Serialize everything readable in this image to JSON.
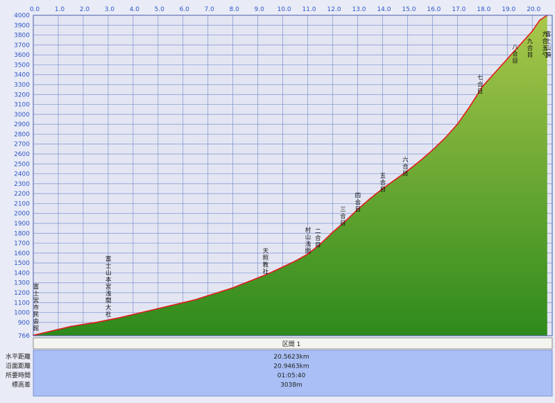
{
  "chart_data": {
    "type": "area",
    "title": "",
    "xlabel": "",
    "ylabel": "",
    "xlim": [
      0.0,
      20.8
    ],
    "ylim": [
      766,
      4000
    ],
    "grid": true,
    "x_ticks": [
      "0.0",
      "1.0",
      "2.0",
      "3.0",
      "4.0",
      "5.0",
      "6.0",
      "7.0",
      "8.0",
      "9.0",
      "10.0",
      "11.0",
      "12.0",
      "13.0",
      "14.0",
      "15.0",
      "16.0",
      "17.0",
      "18.0",
      "19.0",
      "20.0"
    ],
    "y_ticks": [
      "766",
      "900",
      "1000",
      "1100",
      "1200",
      "1300",
      "1400",
      "1500",
      "1600",
      "1700",
      "1800",
      "1900",
      "2000",
      "2100",
      "2200",
      "2300",
      "2400",
      "2500",
      "2600",
      "2700",
      "2800",
      "2900",
      "3000",
      "3100",
      "3200",
      "3300",
      "3400",
      "3500",
      "3600",
      "3700",
      "3800",
      "3900",
      "4000"
    ],
    "series": [
      {
        "x": [
          0.0,
          0.5,
          1.0,
          1.5,
          2.0,
          2.5,
          3.0,
          3.5,
          4.0,
          4.5,
          5.0,
          5.5,
          6.0,
          6.5,
          7.0,
          7.5,
          8.0,
          8.5,
          9.0,
          9.5,
          10.0,
          10.5,
          11.0,
          11.5,
          12.0,
          12.5,
          13.0,
          13.5,
          14.0,
          14.5,
          15.0,
          15.5,
          16.0,
          16.5,
          17.0,
          17.5,
          18.0,
          18.5,
          19.0,
          19.5,
          20.0,
          20.3,
          20.6
        ],
        "values": [
          770,
          800,
          830,
          860,
          880,
          900,
          925,
          950,
          980,
          1010,
          1040,
          1070,
          1100,
          1130,
          1170,
          1210,
          1250,
          1300,
          1350,
          1400,
          1460,
          1520,
          1590,
          1690,
          1810,
          1920,
          2040,
          2150,
          2250,
          2340,
          2430,
          2530,
          2640,
          2760,
          2900,
          3080,
          3280,
          3420,
          3560,
          3700,
          3840,
          3950,
          4040
        ]
      }
    ],
    "waypoints": [
      {
        "label": "富士宮市民会館",
        "x": 0.0,
        "y": 780
      },
      {
        "label": "富士山本宮浅間大社",
        "x": 2.9,
        "y": 920
      },
      {
        "label": "天照教社",
        "x": 9.2,
        "y": 1350
      },
      {
        "label": "村山浅間",
        "x": 10.9,
        "y": 1560
      },
      {
        "label": "二合目",
        "x": 11.3,
        "y": 1620
      },
      {
        "label": "三合目",
        "x": 12.3,
        "y": 1840
      },
      {
        "label": "四合目",
        "x": 12.9,
        "y": 1980
      },
      {
        "label": "五合目",
        "x": 13.9,
        "y": 2180
      },
      {
        "label": "六合目",
        "x": 14.8,
        "y": 2340
      },
      {
        "label": "七合目",
        "x": 17.8,
        "y": 3170
      },
      {
        "label": "八合目",
        "x": 19.2,
        "y": 3480
      },
      {
        "label": "九合目",
        "x": 19.8,
        "y": 3680
      },
      {
        "label": "九合五勺",
        "x": 20.4,
        "y": 3800
      },
      {
        "label": "富士山頂",
        "x": 20.7,
        "y": 3880
      }
    ],
    "colors": {
      "line": "#e21b1b",
      "fill_top": "#a9c74b",
      "fill_bottom": "#2e8a1c",
      "grid": "#7d8fcf",
      "plot_bg": "#e3e6f2",
      "summary_bg": "#a9bff5"
    }
  },
  "section_tab": {
    "label": "区間 1"
  },
  "summary": {
    "rows": [
      {
        "label": "水平距離",
        "value": "20.5623km"
      },
      {
        "label": "沿面距離",
        "value": "20.9463km"
      },
      {
        "label": "所要時間",
        "value": "01:05:40"
      },
      {
        "label": "標高差",
        "value": "3038m"
      }
    ]
  }
}
